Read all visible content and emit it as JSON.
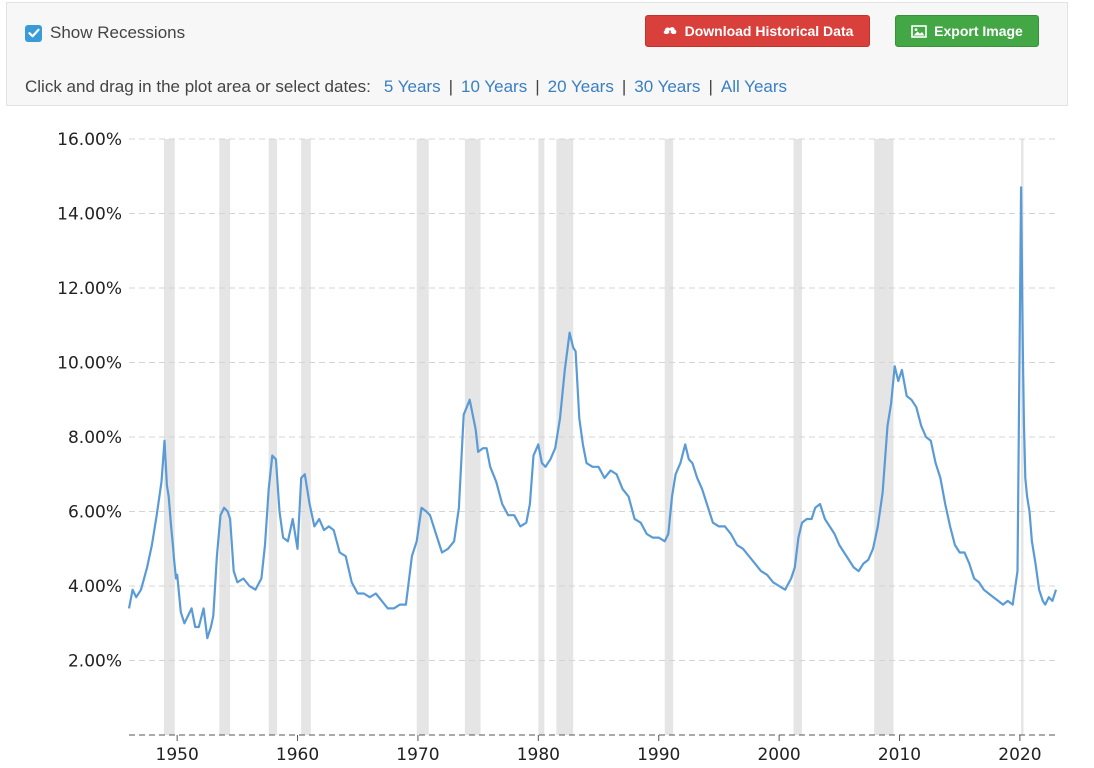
{
  "controls": {
    "show_recessions_label": "Show Recessions",
    "show_recessions_checked": true,
    "download_label": "Download Historical Data",
    "export_label": "Export Image",
    "range_prompt": "Click and drag in the plot area or select dates:",
    "range_options": [
      "5 Years",
      "10 Years",
      "20 Years",
      "30 Years",
      "All Years"
    ]
  },
  "colors": {
    "line": "#5b9bd5",
    "recession": "#e5e5e5",
    "grid": "#d4d4d4",
    "download_button": "#d9403b",
    "export_button": "#43a745",
    "checkbox": "#3a9bd9",
    "link": "#3a7fc1"
  },
  "chart_data": {
    "type": "line",
    "title": "",
    "xlabel": "",
    "ylabel": "",
    "xlim": [
      1946.0,
      2023.0
    ],
    "ylim": [
      0,
      16
    ],
    "y_ticks": [
      2,
      4,
      6,
      8,
      10,
      12,
      14,
      16
    ],
    "y_tick_labels": [
      "2.00%",
      "4.00%",
      "6.00%",
      "8.00%",
      "10.00%",
      "12.00%",
      "14.00%",
      "16.00%"
    ],
    "x_ticks": [
      1950,
      1960,
      1970,
      1980,
      1990,
      2000,
      2010,
      2020
    ],
    "x_tick_labels": [
      "1950",
      "1960",
      "1970",
      "1980",
      "1990",
      "2000",
      "2010",
      "2020"
    ],
    "grid": true,
    "recessions": [
      [
        1948.9,
        1949.8
      ],
      [
        1953.5,
        1954.4
      ],
      [
        1957.6,
        1958.3
      ],
      [
        1960.3,
        1961.1
      ],
      [
        1969.9,
        1970.9
      ],
      [
        1973.9,
        1975.2
      ],
      [
        1980.0,
        1980.5
      ],
      [
        1981.5,
        1982.9
      ],
      [
        1990.5,
        1991.2
      ],
      [
        2001.2,
        2001.9
      ],
      [
        2007.9,
        2009.5
      ],
      [
        2020.1,
        2020.3
      ]
    ],
    "series": [
      {
        "x": [
          1946.0,
          1946.3,
          1946.6,
          1947.0,
          1947.5,
          1947.9,
          1948.3,
          1948.7,
          1948.95,
          1949.15,
          1949.3,
          1949.5,
          1949.65,
          1949.75,
          1949.9,
          1950.0,
          1950.3,
          1950.6,
          1950.9,
          1951.2,
          1951.5,
          1951.8,
          1952.2,
          1952.5,
          1952.8,
          1953.0,
          1953.3,
          1953.6,
          1953.9,
          1954.2,
          1954.4,
          1954.7,
          1955.0,
          1955.5,
          1956.0,
          1956.5,
          1957.0,
          1957.3,
          1957.6,
          1957.9,
          1958.2,
          1958.5,
          1958.8,
          1959.2,
          1959.6,
          1960.0,
          1960.3,
          1960.6,
          1961.0,
          1961.4,
          1961.8,
          1962.2,
          1962.6,
          1963.0,
          1963.5,
          1964.0,
          1964.5,
          1965.0,
          1965.5,
          1966.0,
          1966.5,
          1967.0,
          1967.5,
          1968.0,
          1968.5,
          1969.0,
          1969.5,
          1969.9,
          1970.3,
          1970.7,
          1971.0,
          1971.5,
          1972.0,
          1972.5,
          1973.0,
          1973.4,
          1973.8,
          1974.3,
          1974.8,
          1975.0,
          1975.4,
          1975.7,
          1976.0,
          1976.5,
          1977.0,
          1977.5,
          1978.0,
          1978.5,
          1979.0,
          1979.3,
          1979.6,
          1980.0,
          1980.3,
          1980.6,
          1981.0,
          1981.4,
          1981.8,
          1982.2,
          1982.6,
          1982.9,
          1983.1,
          1983.4,
          1983.7,
          1984.0,
          1984.5,
          1985.0,
          1985.5,
          1986.0,
          1986.5,
          1987.0,
          1987.5,
          1988.0,
          1988.5,
          1989.0,
          1989.5,
          1990.0,
          1990.5,
          1990.8,
          1991.1,
          1991.4,
          1991.8,
          1992.2,
          1992.5,
          1992.8,
          1993.2,
          1993.6,
          1994.0,
          1994.5,
          1995.0,
          1995.5,
          1996.0,
          1996.5,
          1997.0,
          1997.5,
          1998.0,
          1998.5,
          1999.0,
          1999.5,
          2000.0,
          2000.5,
          2001.0,
          2001.3,
          2001.6,
          2001.9,
          2002.3,
          2002.7,
          2003.0,
          2003.4,
          2003.8,
          2004.2,
          2004.6,
          2005.0,
          2005.4,
          2005.8,
          2006.2,
          2006.6,
          2007.0,
          2007.4,
          2007.8,
          2008.2,
          2008.6,
          2009.0,
          2009.3,
          2009.6,
          2009.9,
          2010.2,
          2010.6,
          2011.0,
          2011.4,
          2011.8,
          2012.2,
          2012.6,
          2013.0,
          2013.4,
          2013.8,
          2014.2,
          2014.6,
          2015.0,
          2015.4,
          2015.8,
          2016.2,
          2016.6,
          2017.0,
          2017.4,
          2017.8,
          2018.2,
          2018.6,
          2019.0,
          2019.4,
          2019.8,
          2020.1,
          2020.25,
          2020.33,
          2020.45,
          2020.6,
          2020.8,
          2021.0,
          2021.3,
          2021.6,
          2021.9,
          2022.1,
          2022.4,
          2022.7,
          2023.0
        ],
        "values": [
          3.4,
          3.9,
          3.7,
          3.9,
          4.5,
          5.1,
          5.9,
          6.8,
          7.9,
          6.7,
          6.4,
          5.6,
          5.1,
          4.7,
          4.2,
          4.3,
          3.3,
          3.0,
          3.2,
          3.4,
          2.9,
          2.9,
          3.4,
          2.6,
          2.9,
          3.2,
          4.8,
          5.9,
          6.1,
          6.0,
          5.8,
          4.4,
          4.1,
          4.2,
          4.0,
          3.9,
          4.2,
          5.1,
          6.6,
          7.5,
          7.4,
          6.0,
          5.3,
          5.2,
          5.8,
          5.0,
          6.9,
          7.0,
          6.2,
          5.6,
          5.8,
          5.5,
          5.6,
          5.5,
          4.9,
          4.8,
          4.1,
          3.8,
          3.8,
          3.7,
          3.8,
          3.6,
          3.4,
          3.4,
          3.5,
          3.5,
          4.8,
          5.2,
          6.1,
          6.0,
          5.9,
          5.4,
          4.9,
          5.0,
          5.2,
          6.1,
          8.6,
          9.0,
          8.2,
          7.6,
          7.7,
          7.7,
          7.2,
          6.8,
          6.2,
          5.9,
          5.9,
          5.6,
          5.7,
          6.2,
          7.5,
          7.8,
          7.3,
          7.2,
          7.4,
          7.7,
          8.5,
          9.8,
          10.8,
          10.4,
          10.3,
          8.5,
          7.8,
          7.3,
          7.2,
          7.2,
          6.9,
          7.1,
          7.0,
          6.6,
          6.4,
          5.8,
          5.7,
          5.4,
          5.3,
          5.3,
          5.2,
          5.4,
          6.4,
          7.0,
          7.3,
          7.8,
          7.4,
          7.3,
          6.9,
          6.6,
          6.2,
          5.7,
          5.6,
          5.6,
          5.4,
          5.1,
          5.0,
          4.8,
          4.6,
          4.4,
          4.3,
          4.1,
          4.0,
          3.9,
          4.2,
          4.5,
          5.3,
          5.7,
          5.8,
          5.8,
          6.1,
          6.2,
          5.8,
          5.6,
          5.4,
          5.1,
          4.9,
          4.7,
          4.5,
          4.4,
          4.6,
          4.7,
          5.0,
          5.6,
          6.5,
          8.3,
          8.9,
          9.9,
          9.5,
          9.8,
          9.1,
          9.0,
          8.8,
          8.3,
          8.0,
          7.9,
          7.3,
          6.9,
          6.2,
          5.6,
          5.1,
          4.9,
          4.9,
          4.6,
          4.2,
          4.1,
          3.9,
          3.8,
          3.7,
          3.6,
          3.5,
          3.6,
          3.5,
          4.4,
          14.7,
          10.2,
          8.4,
          6.9,
          6.4,
          6.0,
          5.2,
          4.6,
          3.9,
          3.6,
          3.5,
          3.7,
          3.6,
          3.9
        ]
      }
    ]
  }
}
